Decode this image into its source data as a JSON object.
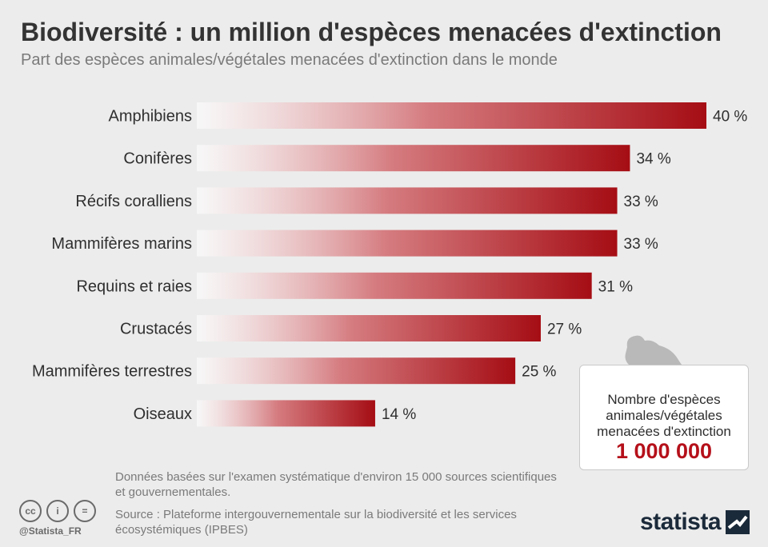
{
  "header": {
    "title": "Biodiversité : un million d'espèces menacées d'extinction",
    "subtitle": "Part des espèces animales/végétales menacées d'extinction dans le monde"
  },
  "chart_data": {
    "type": "bar",
    "orientation": "horizontal",
    "categories": [
      "Amphibiens",
      "Conifères",
      "Récifs coralliens",
      "Mammifères marins",
      "Requins et raies",
      "Crustacés",
      "Mammifères terrestres",
      "Oiseaux"
    ],
    "values": [
      40,
      34,
      33,
      33,
      31,
      27,
      25,
      14
    ],
    "value_labels": [
      "40 %",
      "34 %",
      "33 %",
      "33 %",
      "31 %",
      "27 %",
      "25 %",
      "14 %"
    ],
    "unit": "%",
    "xlim": [
      0,
      40
    ],
    "grid": false,
    "colors": {
      "bar_start": "#ffffff",
      "bar_end": "#a50d14"
    }
  },
  "infobox": {
    "text": "Nombre d'espèces animales/végétales menacées d'extinction",
    "number": "1 000 000",
    "icon": "frog-icon"
  },
  "footer": {
    "note": "Données basées sur l'examen systématique d'environ 15 000 sources scientifiques et gouvernementales.",
    "source": "Source : Plateforme intergouvernementale sur la biodiversité et les services écosystémiques (IPBES)",
    "handle": "@Statista_FR",
    "license_icons": [
      "cc",
      "i",
      "="
    ],
    "brand": "statista"
  },
  "colors": {
    "accent": "#b5101a",
    "background": "#ececec"
  }
}
